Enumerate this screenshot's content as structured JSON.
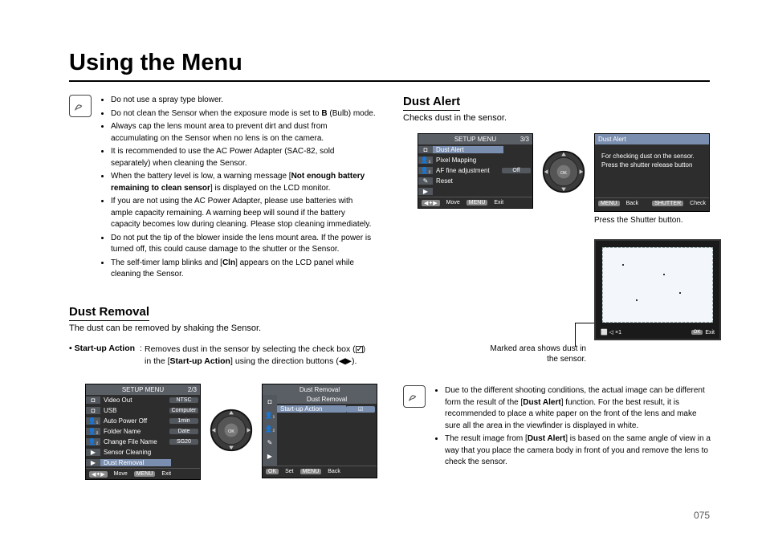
{
  "page": {
    "title": "Using the Menu",
    "number": "075"
  },
  "note1": {
    "items": [
      "Do not use a spray type blower.",
      "Do not clean the Sensor when the exposure mode is set to <b>B</b> (Bulb) mode.",
      "Always cap the lens mount area to prevent dirt and dust from accumulating on the Sensor when no lens is on the camera.",
      "It is recommended to use the AC Power Adapter (SAC-82, sold separately) when cleaning the Sensor.",
      "When the battery level is low, a warning message [<b>Not enough battery remaining to clean sensor</b>] is displayed on the LCD monitor.",
      "If you are not using the AC Power Adapter, please use batteries with ample capacity remaining. A warning beep will sound if the battery capacity becomes low during cleaning. Please stop cleaning immediately.",
      "Do not put the tip of the blower inside the lens mount area. If the power is turned off, this could cause damage to the shutter or the Sensor.",
      "The self-timer lamp blinks and [<b>Cln</b>] appears on the LCD panel while cleaning the Sensor."
    ]
  },
  "dust_removal": {
    "heading": "Dust Removal",
    "intro": "The dust can be removed by shaking the Sensor.",
    "startup_label": "• Start-up Action",
    "startup_desc_a": "Removes dust in the sensor by selecting the check box (",
    "startup_desc_b": ") in the [<b>Start-up Action</b>] using the direction buttons (◀▶)."
  },
  "lcd_setup23": {
    "title": "SETUP MENU",
    "pager": "2/3",
    "side": [
      "◘",
      "👤₁",
      "👤₂",
      "✎",
      "▶"
    ],
    "rows": [
      {
        "label": "Video Out",
        "val": "NTSC"
      },
      {
        "label": "USB",
        "val": "Computer"
      },
      {
        "label": "Auto Power Off",
        "val": "1min"
      },
      {
        "label": "Folder Name",
        "val": "Date"
      },
      {
        "label": "Change File Name",
        "val": "SG20"
      },
      {
        "label": "Sensor Cleaning",
        "val": ""
      },
      {
        "label": "Dust Removal",
        "val": "",
        "hl": true
      }
    ],
    "foot_left": "Move",
    "foot_right": "Exit"
  },
  "lcd_dustremoval": {
    "title": "Dust Removal",
    "side": [
      "◘",
      "👤₁",
      "👤₂",
      "✎",
      "▶"
    ],
    "sub": "Dust Removal",
    "row_label": "Start-up Action",
    "foot_left": "Set",
    "foot_right": "Back"
  },
  "dust_alert": {
    "heading": "Dust Alert",
    "intro": "Checks dust in the sensor.",
    "press": "Press the Shutter button.",
    "marked": "Marked area shows dust in the sensor."
  },
  "lcd_setup33": {
    "title": "SETUP MENU",
    "pager": "3/3",
    "side": [
      "◘",
      "👤₁",
      "👤₂",
      "✎",
      "▶"
    ],
    "rows": [
      {
        "label": "Dust Alert",
        "val": "",
        "hl": true
      },
      {
        "label": "Pixel Mapping",
        "val": ""
      },
      {
        "label": "AF fine adjustment",
        "val": "Off"
      },
      {
        "label": "Reset",
        "val": ""
      }
    ],
    "foot_left": "Move",
    "foot_right": "Exit"
  },
  "lcd_alert": {
    "title": "Dust Alert",
    "msg": "For checking dust on the sensor. Press the shutter release button",
    "foot_left": "Back",
    "foot_right": "Check"
  },
  "lcd_preview": {
    "foot_exit": "Exit"
  },
  "note2": {
    "items": [
      "Due to the different shooting conditions, the actual image can be different form the result of the [<b>Dust Alert</b>] function. For the best result, it is recommended to place a white paper on the front of the lens and make sure all the area in the viewfinder is displayed in white.",
      "The result image from [<b>Dust Alert</b>] is based on the same angle of view in a way that you place the camera body in front of you and remove the lens to check the sensor."
    ]
  },
  "knob": {
    "ok": "OK"
  },
  "btns": {
    "menu": "MENU",
    "ok": "OK",
    "shutter": "SHUTTER",
    "nav": "◀✦▶"
  }
}
